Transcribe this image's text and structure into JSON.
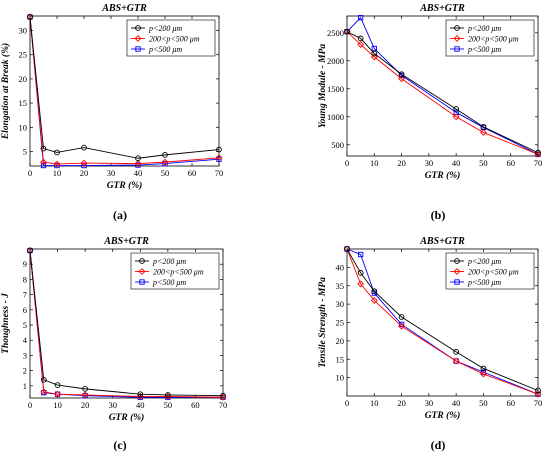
{
  "colors": {
    "black": "#000000",
    "red": "#ff0000",
    "blue": "#0000ff"
  },
  "markers": [
    "circle",
    "diamond",
    "square"
  ],
  "chart_data": [
    {
      "type": "line",
      "caption": "(a)",
      "title": "ABS+GTR",
      "xlabel": "GTR (%)",
      "ylabel": "Elongation at Break (%)",
      "xlim": [
        0,
        70
      ],
      "ylim": [
        2,
        33
      ],
      "xticks": [
        0,
        10,
        20,
        30,
        40,
        50,
        60,
        70
      ],
      "yticks": [
        5,
        10,
        15,
        20,
        25,
        30
      ],
      "grid": false,
      "legend": "top-right",
      "x": [
        0,
        5,
        10,
        20,
        40,
        50,
        70
      ],
      "series": [
        {
          "name": "p<200 μm",
          "values": [
            32.8,
            5.6,
            4.8,
            5.8,
            3.6,
            4.3,
            5.4
          ]
        },
        {
          "name": "200<p<500 μm",
          "values": [
            32.8,
            2.8,
            2.4,
            2.6,
            2.5,
            2.8,
            3.7
          ]
        },
        {
          "name": "p<500 μm",
          "values": [
            32.8,
            2.1,
            2.1,
            2.1,
            2.2,
            2.5,
            3.4
          ]
        }
      ]
    },
    {
      "type": "line",
      "caption": "(b)",
      "title": "ABS+GTR",
      "xlabel": "GTR (%)",
      "ylabel": "Young Module - MPa",
      "xlim": [
        0,
        70
      ],
      "ylim": [
        300,
        2800
      ],
      "xticks": [
        0,
        10,
        20,
        30,
        40,
        50,
        60,
        70
      ],
      "yticks": [
        500,
        1000,
        1500,
        2000,
        2500
      ],
      "grid": false,
      "legend": "top-right",
      "x": [
        0,
        5,
        10,
        20,
        40,
        50,
        70
      ],
      "series": [
        {
          "name": "p<200 μm",
          "values": [
            2520,
            2400,
            2130,
            1760,
            1140,
            820,
            360
          ]
        },
        {
          "name": "200<p<500 μm",
          "values": [
            2520,
            2290,
            2070,
            1680,
            1000,
            720,
            330
          ]
        },
        {
          "name": "p<500 μm",
          "values": [
            2520,
            2770,
            2220,
            1740,
            1080,
            810,
            330
          ]
        }
      ]
    },
    {
      "type": "line",
      "caption": "(c)",
      "title": "ABS+GTR",
      "xlabel": "GTR (%)",
      "ylabel": "Thoughness - J",
      "xlim": [
        0,
        70
      ],
      "ylim": [
        0.2,
        10
      ],
      "xticks": [
        0,
        10,
        20,
        30,
        40,
        50,
        60,
        70
      ],
      "yticks": [
        1,
        2,
        3,
        4,
        5,
        6,
        7,
        8,
        9
      ],
      "grid": false,
      "legend": "top-right",
      "x": [
        0,
        5,
        10,
        20,
        40,
        50,
        70
      ],
      "series": [
        {
          "name": "p<200 μm",
          "values": [
            9.9,
            1.4,
            1.05,
            0.8,
            0.45,
            0.4,
            0.35
          ]
        },
        {
          "name": "200<p<500 μm",
          "values": [
            9.9,
            0.6,
            0.45,
            0.4,
            0.3,
            0.3,
            0.25
          ]
        },
        {
          "name": "p<500 μm",
          "values": [
            9.9,
            0.55,
            0.45,
            0.35,
            0.25,
            0.25,
            0.25
          ]
        }
      ]
    },
    {
      "type": "line",
      "caption": "(d)",
      "title": "ABS+GTR",
      "xlabel": "GTR (%)",
      "ylabel": "Tensile Strength - MPa",
      "xlim": [
        0,
        70
      ],
      "ylim": [
        5,
        45
      ],
      "xticks": [
        0,
        10,
        20,
        30,
        40,
        50,
        60,
        70
      ],
      "yticks": [
        10,
        15,
        20,
        25,
        30,
        35,
        40
      ],
      "grid": false,
      "legend": "top-right",
      "x": [
        0,
        5,
        10,
        20,
        40,
        50,
        70
      ],
      "series": [
        {
          "name": "p<200 μm",
          "values": [
            45,
            38.5,
            33.5,
            26.5,
            17,
            12.5,
            6.5
          ]
        },
        {
          "name": "200<p<500 μm",
          "values": [
            45,
            35.5,
            31,
            24,
            14.5,
            11,
            5.5
          ]
        },
        {
          "name": "p<500 μm",
          "values": [
            45,
            43.5,
            33,
            24.5,
            14.5,
            11.5,
            5.5
          ]
        }
      ]
    }
  ]
}
